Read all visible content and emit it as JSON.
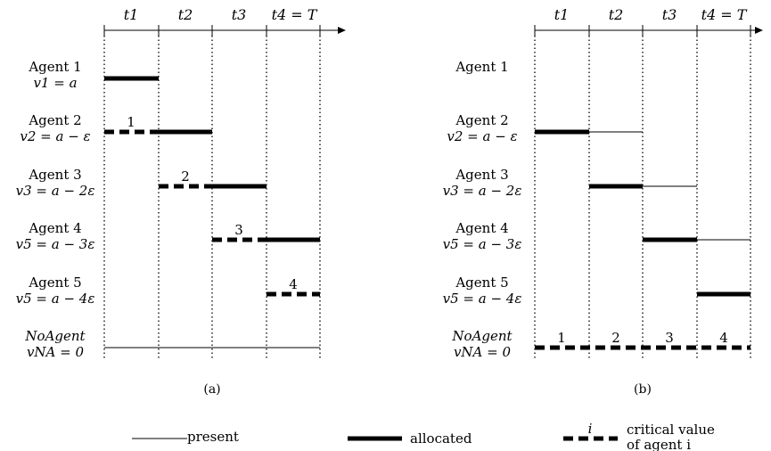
{
  "times": [
    "t1",
    "t2",
    "t3",
    "t4 = T"
  ],
  "panel_a": {
    "caption": "(a)",
    "agents": [
      {
        "name": "Agent 1",
        "value": "v1 = a"
      },
      {
        "name": "Agent 2",
        "value": "v2 = a − ε"
      },
      {
        "name": "Agent 3",
        "value": "v3 = a − 2ε"
      },
      {
        "name": "Agent 4",
        "value": "v5 = a − 3ε"
      },
      {
        "name": "Agent 5",
        "value": "v5 = a − 4ε"
      },
      {
        "name": "NoAgent",
        "value": "vNA = 0"
      }
    ],
    "critical_labels": [
      "1",
      "2",
      "3",
      "4"
    ]
  },
  "panel_b": {
    "caption": "(b)",
    "agents": [
      {
        "name": "Agent 1",
        "value": ""
      },
      {
        "name": "Agent 2",
        "value": "v2 = a − ε"
      },
      {
        "name": "Agent 3",
        "value": "v3 = a − 2ε"
      },
      {
        "name": "Agent 4",
        "value": "v5 = a − 3ε"
      },
      {
        "name": "Agent 5",
        "value": "v5 = a − 4ε"
      },
      {
        "name": "NoAgent",
        "value": "vNA = 0"
      }
    ],
    "critical_labels": [
      "1",
      "2",
      "3",
      "4"
    ]
  },
  "legend": {
    "present": "present",
    "allocated": "allocated",
    "critical_symbol": "i",
    "critical_line1": "critical value",
    "critical_line2": "of agent i"
  }
}
